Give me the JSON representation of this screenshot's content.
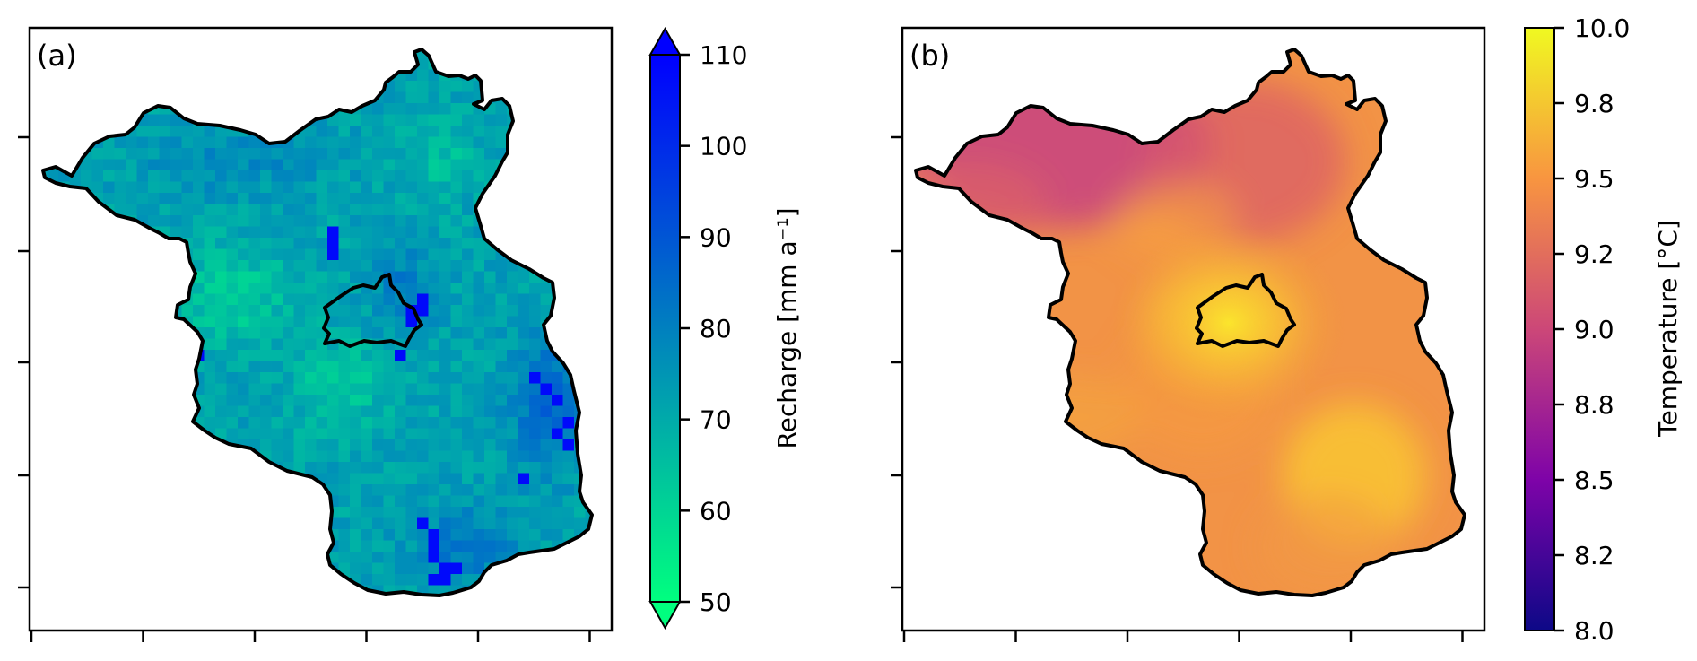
{
  "panels": [
    {
      "label": "(a)",
      "colorbar": {
        "label": "Recharge [mm a⁻¹]",
        "ticks": [
          "110",
          "100",
          "90",
          "80",
          "70",
          "60",
          "50"
        ],
        "cmap": [
          "#00ff7f",
          "#0080c0",
          "#0000ff"
        ]
      }
    },
    {
      "label": "(b)",
      "colorbar": {
        "label": "Temperature [°C]",
        "ticks": [
          "10.0",
          "9.8",
          "9.5",
          "9.2",
          "9.0",
          "8.8",
          "8.5",
          "8.2",
          "8.0"
        ],
        "cmap": [
          "#0d0887",
          "#9c179e",
          "#ed7953",
          "#f0f921"
        ]
      }
    }
  ],
  "chart_data": [
    {
      "type": "heatmap",
      "title": "(a)",
      "colorbar_label": "Recharge [mm a⁻¹]",
      "colorbar_range": [
        50,
        110
      ],
      "colorbar_ticks": [
        50,
        60,
        70,
        80,
        90,
        100,
        110
      ],
      "colorbar_extend": "both",
      "colormap": "winter_r (green → blue)",
      "x_ticks_labeled": false,
      "y_ticks_labeled": false,
      "approx_value_range": [
        55,
        110
      ],
      "high_values_located": [
        "south-east border",
        "south",
        "east of inner city outline"
      ],
      "low_values_located": [
        "west-central",
        "central",
        "north-east"
      ]
    },
    {
      "type": "heatmap",
      "title": "(b)",
      "colorbar_label": "Temperature [°C]",
      "colorbar_range": [
        8.0,
        10.0
      ],
      "colorbar_ticks": [
        "8.0",
        "8.2",
        "8.5",
        "8.8",
        "9.0",
        "9.2",
        "9.5",
        "9.8",
        "10.0"
      ],
      "colormap": "plasma",
      "x_ticks_labeled": false,
      "y_ticks_labeled": false,
      "approx_value_range": [
        8.9,
        9.9
      ],
      "high_values_located": [
        "inner city outline",
        "south-east"
      ],
      "low_values_located": [
        "north"
      ]
    }
  ]
}
